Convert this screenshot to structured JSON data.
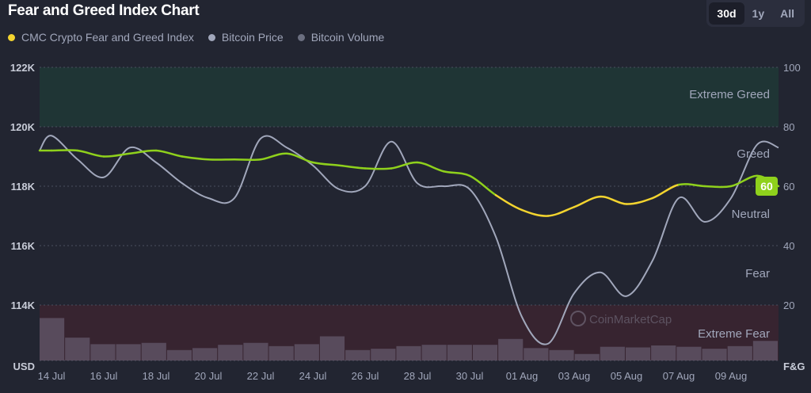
{
  "header": {
    "title": "Fear and Greed Index Chart",
    "ranges": [
      "30d",
      "1y",
      "All"
    ],
    "active_range": "30d"
  },
  "legend": [
    {
      "label": "CMC Crypto Fear and Greed Index",
      "color": "#f3d42f"
    },
    {
      "label": "Bitcoin Price",
      "color": "#a1a7bb"
    },
    {
      "label": "Bitcoin Volume",
      "color": "#6b6f80"
    }
  ],
  "watermark": "CoinMarketCap",
  "chart_data": {
    "type": "line",
    "title": "Fear and Greed Index Chart",
    "x": [
      "14 Jul",
      "15 Jul",
      "16 Jul",
      "17 Jul",
      "18 Jul",
      "19 Jul",
      "20 Jul",
      "21 Jul",
      "22 Jul",
      "23 Jul",
      "24 Jul",
      "25 Jul",
      "26 Jul",
      "27 Jul",
      "28 Jul",
      "29 Jul",
      "30 Jul",
      "31 Jul",
      "01 Aug",
      "02 Aug",
      "03 Aug",
      "04 Aug",
      "05 Aug",
      "06 Aug",
      "07 Aug",
      "08 Aug",
      "09 Aug",
      "10 Aug",
      "11 Aug"
    ],
    "x_tick_labels": [
      "14 Jul",
      "16 Jul",
      "18 Jul",
      "20 Jul",
      "22 Jul",
      "24 Jul",
      "26 Jul",
      "28 Jul",
      "30 Jul",
      "01 Aug",
      "03 Aug",
      "05 Aug",
      "07 Aug",
      "09 Aug"
    ],
    "left_axis": {
      "label": "USD",
      "ticks": [
        "114K",
        "116K",
        "118K",
        "120K",
        "122K"
      ],
      "range_k": [
        112.1,
        122
      ]
    },
    "right_axis": {
      "label": "F&G",
      "ticks": [
        "20",
        "40",
        "60",
        "80",
        "100"
      ],
      "range": [
        0,
        100
      ]
    },
    "zones": [
      {
        "label": "Extreme Greed",
        "range": [
          80,
          100
        ],
        "color": "#1f3535"
      },
      {
        "label": "Greed",
        "range": [
          60,
          80
        ]
      },
      {
        "label": "Neutral",
        "range": [
          40,
          60
        ]
      },
      {
        "label": "Fear",
        "range": [
          20,
          40
        ]
      },
      {
        "label": "Extreme Fear",
        "range": [
          0,
          20
        ],
        "color": "#372430"
      }
    ],
    "series": [
      {
        "name": "CMC Crypto Fear and Greed Index",
        "axis": "right",
        "colors": {
          "greed": "#8fd11c",
          "neutral": "#f3d42f"
        },
        "values": [
          72,
          72,
          70,
          71,
          72,
          70,
          69,
          69,
          69,
          71,
          68,
          67,
          66,
          66,
          68,
          65,
          63.5,
          57,
          52,
          50,
          53,
          56.5,
          54,
          56,
          60.5,
          60,
          60,
          63.5,
          60
        ]
      },
      {
        "name": "Bitcoin Price",
        "axis": "left",
        "unit": "K USD",
        "color": "#a1a7bb",
        "values": [
          119.7,
          118.9,
          118.3,
          119.3,
          118.8,
          118.1,
          117.6,
          117.6,
          119.6,
          119.3,
          118.7,
          117.9,
          118.0,
          119.5,
          118.1,
          118.0,
          117.9,
          116.3,
          113.6,
          112.7,
          114.4,
          115.1,
          114.3,
          115.5,
          117.6,
          116.8,
          117.6,
          119.4,
          119.3
        ]
      },
      {
        "name": "Bitcoin Volume",
        "axis": "none",
        "unit": "relative",
        "color": "#5e5264",
        "values": [
          65,
          35,
          25,
          25,
          27,
          16,
          19,
          24,
          27,
          22,
          25,
          37,
          16,
          18,
          22,
          24,
          24,
          24,
          33,
          19,
          16,
          10,
          21,
          20,
          23,
          21,
          18,
          22,
          30
        ]
      }
    ],
    "current_value_badge": "60"
  }
}
